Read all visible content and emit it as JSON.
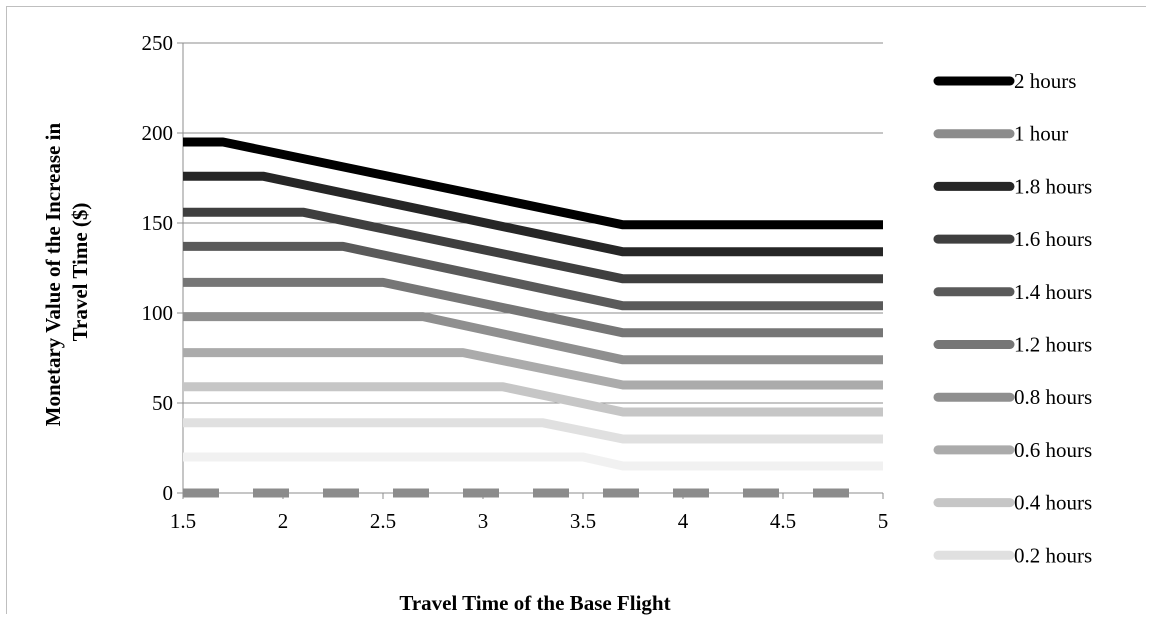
{
  "chart_data": {
    "type": "line",
    "title": "",
    "xlabel": "Travel Time of the Base Flight",
    "ylabel": "Monetary  Value of the Increase in Travel Time ($)",
    "ylabel_lines": [
      "Monetary  Value of the Increase in",
      "Travel Time ($)"
    ],
    "xlim": [
      1.5,
      5
    ],
    "ylim": [
      0,
      250
    ],
    "x_ticks": [
      "1.5",
      "2",
      "2.5",
      "3",
      "3.5",
      "4",
      "4.5",
      "5"
    ],
    "y_ticks": [
      "0",
      "50",
      "100",
      "150",
      "200",
      "250"
    ],
    "grid": "horizontal",
    "legend_position": "right",
    "series": [
      {
        "name": "2 hours",
        "color": "#000000",
        "dash": false,
        "points": [
          [
            1.5,
            195
          ],
          [
            1.7,
            195
          ],
          [
            3.7,
            149
          ],
          [
            5,
            149
          ]
        ]
      },
      {
        "name": "1 hour",
        "color": "#8c8c8c",
        "dash": true,
        "points": [
          [
            1.5,
            0
          ],
          [
            5,
            0
          ]
        ]
      },
      {
        "name": "1.8 hours",
        "color": "#262626",
        "dash": false,
        "points": [
          [
            1.5,
            176
          ],
          [
            1.9,
            176
          ],
          [
            3.7,
            134
          ],
          [
            5,
            134
          ]
        ]
      },
      {
        "name": "1.6 hours",
        "color": "#3f3f3f",
        "dash": false,
        "points": [
          [
            1.5,
            156
          ],
          [
            2.1,
            156
          ],
          [
            3.7,
            119
          ],
          [
            5,
            119
          ]
        ]
      },
      {
        "name": "1.4 hours",
        "color": "#5a5a5a",
        "dash": false,
        "points": [
          [
            1.5,
            137
          ],
          [
            2.3,
            137
          ],
          [
            3.7,
            104
          ],
          [
            5,
            104
          ]
        ]
      },
      {
        "name": "1.2 hours",
        "color": "#767676",
        "dash": false,
        "points": [
          [
            1.5,
            117
          ],
          [
            2.5,
            117
          ],
          [
            3.7,
            89
          ],
          [
            5,
            89
          ]
        ]
      },
      {
        "name": "0.8 hours",
        "color": "#8f8f8f",
        "dash": false,
        "points": [
          [
            1.5,
            98
          ],
          [
            2.7,
            98
          ],
          [
            3.7,
            74
          ],
          [
            5,
            74
          ]
        ]
      },
      {
        "name": "0.6 hours",
        "color": "#ababab",
        "dash": false,
        "points": [
          [
            1.5,
            78
          ],
          [
            2.9,
            78
          ],
          [
            3.7,
            60
          ],
          [
            5,
            60
          ]
        ]
      },
      {
        "name": "0.4 hours",
        "color": "#c6c6c6",
        "dash": false,
        "points": [
          [
            1.5,
            59
          ],
          [
            3.1,
            59
          ],
          [
            3.7,
            45
          ],
          [
            5,
            45
          ]
        ]
      },
      {
        "name": "0.2 hours",
        "color": "#e0e0e0",
        "dash": false,
        "points": [
          [
            1.5,
            39
          ],
          [
            3.3,
            39
          ],
          [
            3.7,
            30
          ],
          [
            5,
            30
          ]
        ]
      },
      {
        "name": "",
        "color": "#f1f1f1",
        "dash": false,
        "points": [
          [
            1.5,
            20
          ],
          [
            3.5,
            20
          ],
          [
            3.7,
            15
          ],
          [
            5,
            15
          ]
        ]
      }
    ]
  }
}
